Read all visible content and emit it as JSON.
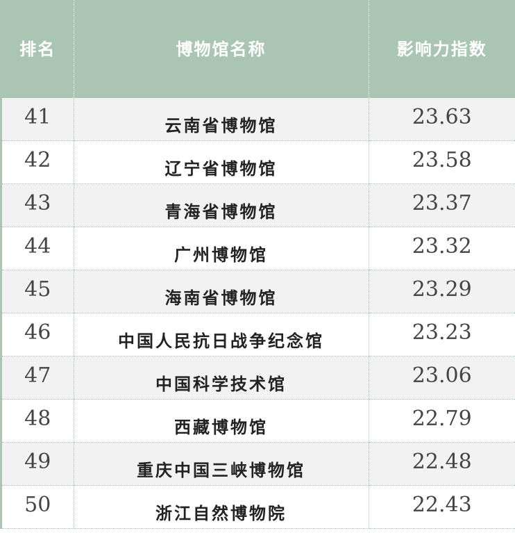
{
  "header": {
    "rank": "排名",
    "name": "博物馆名称",
    "score": "影响力指数"
  },
  "rows": [
    {
      "rank": "41",
      "name": "云南省博物馆",
      "score": "23.63"
    },
    {
      "rank": "42",
      "name": "辽宁省博物馆",
      "score": "23.58"
    },
    {
      "rank": "43",
      "name": "青海省博物馆",
      "score": "23.37"
    },
    {
      "rank": "44",
      "name": "广州博物馆",
      "score": "23.32"
    },
    {
      "rank": "45",
      "name": "海南省博物馆",
      "score": "23.29"
    },
    {
      "rank": "46",
      "name": "中国人民抗日战争纪念馆",
      "score": "23.23"
    },
    {
      "rank": "47",
      "name": "中国科学技术馆",
      "score": "23.06"
    },
    {
      "rank": "48",
      "name": "西藏博物馆",
      "score": "22.79"
    },
    {
      "rank": "49",
      "name": "重庆中国三峡博物馆",
      "score": "22.48"
    },
    {
      "rank": "50",
      "name": "浙江自然博物院",
      "score": "22.43"
    }
  ],
  "colors": {
    "header_bg": "#abc5b5",
    "stripe": "#f2f2f2"
  }
}
